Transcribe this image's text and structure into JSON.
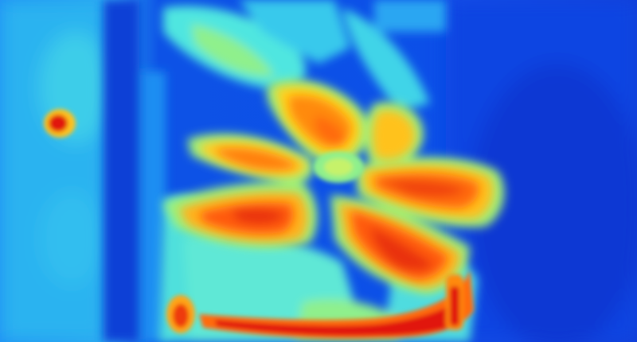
{
  "image": {
    "kind": "thermal-camera-photo",
    "subject": "fan-blades-and-frame",
    "palette": {
      "cold_deep": "#0a3fd8",
      "cold": "#1d6ff5",
      "cool": "#29a8f3",
      "mild": "#4fe6e0",
      "warm_mild": "#9ff07a",
      "warm": "#ffd21f",
      "hot": "#ff7a0a",
      "hottest": "#e1160a"
    }
  }
}
